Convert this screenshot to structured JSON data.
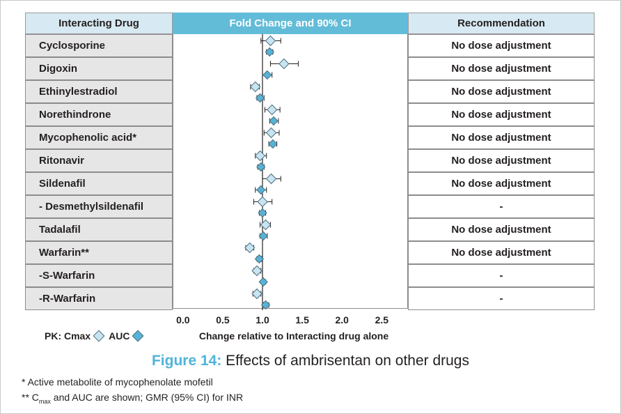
{
  "header": {
    "drug": "Interacting Drug",
    "plot": "Fold Change and 90% CI",
    "recommendation": "Recommendation"
  },
  "rows": [
    {
      "drug": "Cyclosporine",
      "rec": "No dose adjustment"
    },
    {
      "drug": "Digoxin",
      "rec": "No dose adjustment"
    },
    {
      "drug": "Ethinylestradiol",
      "rec": "No dose adjustment"
    },
    {
      "drug": "Norethindrone",
      "rec": "No dose adjustment"
    },
    {
      "drug": "Mycophenolic acid*",
      "rec": "No dose adjustment"
    },
    {
      "drug": "Ritonavir",
      "rec": "No dose adjustment"
    },
    {
      "drug": "Sildenafil",
      "rec": "No dose adjustment"
    },
    {
      "drug": "- Desmethylsildenafil",
      "rec": "-"
    },
    {
      "drug": "Tadalafil",
      "rec": "No dose adjustment"
    },
    {
      "drug": "Warfarin**",
      "rec": "No dose adjustment"
    },
    {
      "drug": "-S-Warfarin",
      "rec": "-"
    },
    {
      "drug": "-R-Warfarin",
      "rec": "-"
    }
  ],
  "legend": {
    "prefix": "PK: Cmax",
    "auc": "AUC",
    "cmax_color": "#c9e4f1",
    "auc_color": "#57b3d5"
  },
  "caption": {
    "figure": "Figure 14:",
    "text": " Effects of ambrisentan on other drugs"
  },
  "footnotes": {
    "f1": "* Active metabolite of mycophenolate mofetil",
    "f2_prefix": "** C",
    "f2_sub": "max",
    "f2_rest": " and AUC are shown; GMR (95% CI) for INR"
  },
  "chart_data": {
    "type": "scatter",
    "title": "Fold Change and 90% CI",
    "xlabel": "Change relative to Interacting drug alone",
    "xlim": [
      -0.13,
      2.83
    ],
    "xticks": [
      "0.0",
      "0.5",
      "1.0",
      "1.5",
      "2.0",
      "2.5"
    ],
    "reference_line": 1.0,
    "categories": [
      "Cyclosporine",
      "Digoxin",
      "Ethinylestradiol",
      "Norethindrone",
      "Mycophenolic acid*",
      "Ritonavir",
      "Sildenafil",
      "- Desmethylsildenafil",
      "Tadalafil",
      "Warfarin**",
      "-S-Warfarin",
      "-R-Warfarin"
    ],
    "series": [
      {
        "name": "Cmax",
        "values": [
          1.1,
          1.27,
          0.91,
          1.12,
          1.11,
          0.97,
          1.11,
          1.0,
          1.04,
          0.84,
          0.93,
          0.93
        ],
        "ci_low": [
          0.98,
          1.1,
          0.85,
          1.03,
          1.02,
          0.91,
          1.0,
          0.89,
          0.97,
          0.79,
          0.89,
          0.88
        ],
        "ci_high": [
          1.23,
          1.45,
          0.96,
          1.22,
          1.21,
          1.05,
          1.23,
          1.12,
          1.1,
          0.89,
          0.98,
          0.98
        ]
      },
      {
        "name": "AUC",
        "values": [
          1.09,
          1.06,
          0.97,
          1.14,
          1.13,
          0.98,
          0.98,
          1.0,
          1.01,
          0.96,
          1.01,
          1.04
        ],
        "ci_low": [
          1.05,
          1.0,
          0.93,
          1.09,
          1.08,
          0.94,
          0.91,
          0.96,
          0.97,
          0.93,
          0.99,
          1.01
        ],
        "ci_high": [
          1.13,
          1.12,
          1.02,
          1.2,
          1.18,
          1.02,
          1.05,
          1.04,
          1.06,
          0.99,
          1.04,
          1.08
        ]
      }
    ],
    "grid": false
  }
}
